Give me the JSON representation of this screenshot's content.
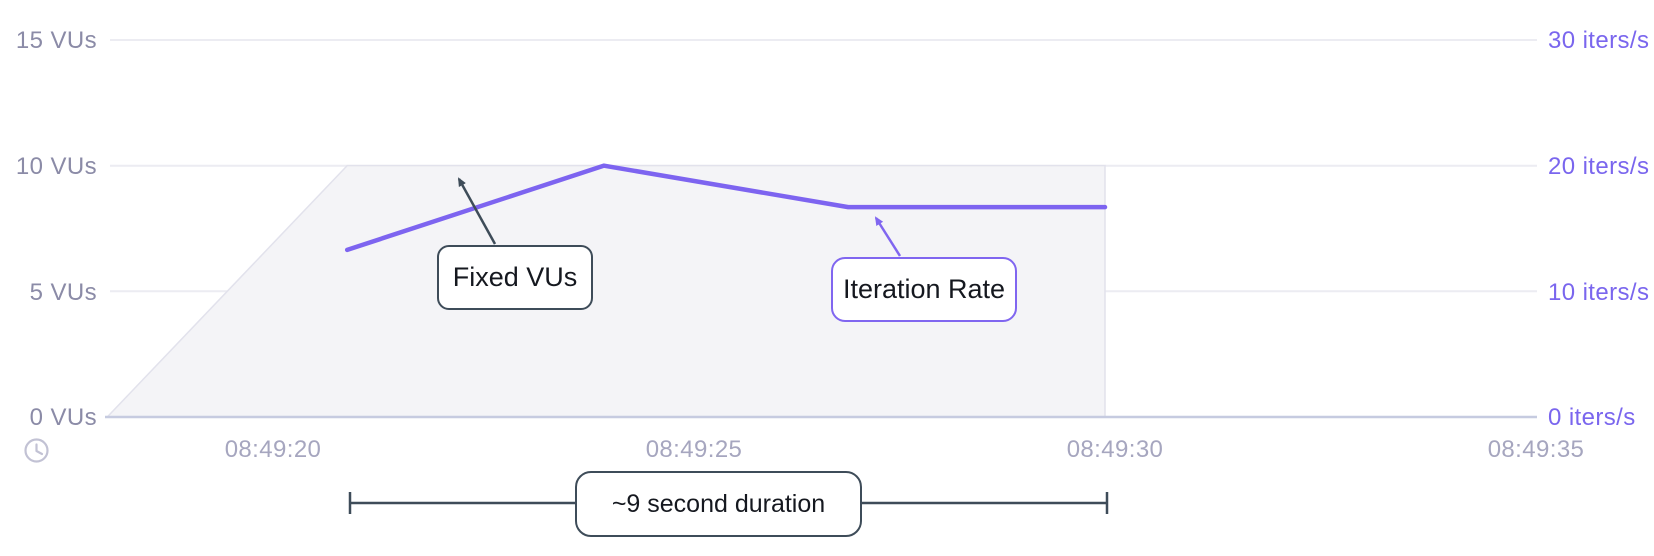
{
  "axes": {
    "left": [
      "15 VUs",
      "10 VUs",
      "5 VUs",
      "0 VUs"
    ],
    "right": [
      "30 iters/s",
      "20 iters/s",
      "10 iters/s",
      "0 iters/s"
    ],
    "x": [
      "08:49:20",
      "08:49:25",
      "08:49:30",
      "08:49:35"
    ]
  },
  "annotations": {
    "fixed_vus": "Fixed VUs",
    "iteration_rate": "Iteration Rate",
    "duration": "~9 second duration"
  },
  "icons": {
    "clock": "clock-icon"
  },
  "colors": {
    "line": "#7d64f0",
    "area_fill": "#f4f4f7",
    "area_edge": "#e2e2ec",
    "grid": "#ececf2",
    "baseline": "#c6cbe0",
    "dark_annotation": "#3e4c59",
    "purple_annotation": "#8066f0",
    "left_axis_text": "#8b8ba7",
    "right_axis_text": "#7a66ee",
    "x_axis_text": "#a6a6bf",
    "clock_icon": "#c2c2d4"
  },
  "chart_data": {
    "type": "area+line",
    "title": "",
    "x_axis": {
      "tick_labels": [
        "08:49:20",
        "08:49:25",
        "08:49:30",
        "08:49:35"
      ],
      "unit": "time"
    },
    "left_axis": {
      "label_unit": "VUs",
      "range": [
        0,
        15
      ],
      "ticks": [
        0,
        5,
        10,
        15
      ]
    },
    "right_axis": {
      "label_unit": "iters/s",
      "range": [
        0,
        30
      ],
      "ticks": [
        0,
        10,
        20,
        30
      ]
    },
    "grid": true,
    "legend_position": "none",
    "duration_annotation": {
      "label": "~9 second duration",
      "from": "08:49:21",
      "to": "08:49:30",
      "seconds": 9
    },
    "series": [
      {
        "name": "Fixed VUs",
        "type": "area",
        "axis": "left",
        "points": [
          {
            "time": "08:49:18",
            "t": 18.15,
            "value": 0
          },
          {
            "time": "08:49:21",
            "t": 21.0,
            "value": 10
          },
          {
            "time": "08:49:30",
            "t": 30.0,
            "value": 10
          },
          {
            "time": "08:49:30",
            "t": 30.0,
            "value": 0
          }
        ]
      },
      {
        "name": "Iteration Rate",
        "type": "line",
        "axis": "right",
        "points": [
          {
            "time": "08:49:21",
            "t": 21.0,
            "value": 13.3
          },
          {
            "time": "08:49:24",
            "t": 24.05,
            "value": 20.0
          },
          {
            "time": "08:49:27",
            "t": 26.95,
            "value": 16.7
          },
          {
            "time": "08:49:30",
            "t": 30.0,
            "value": 16.7
          }
        ]
      }
    ]
  }
}
